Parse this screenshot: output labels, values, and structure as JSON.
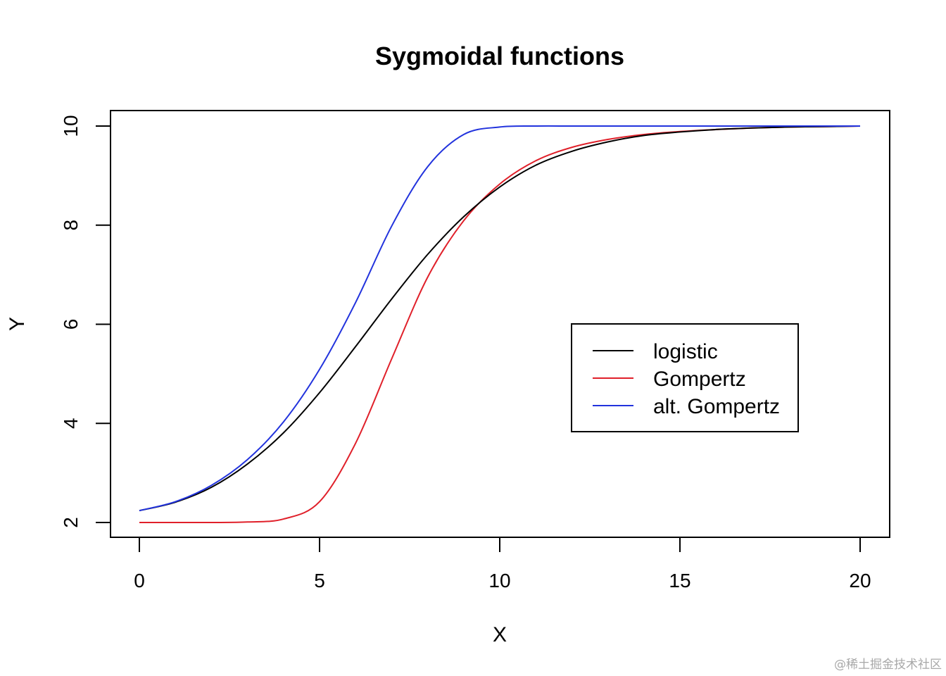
{
  "chart_data": {
    "type": "line",
    "title": "Sygmoidal functions",
    "xlabel": "X",
    "ylabel": "Y",
    "xlim": [
      0,
      20
    ],
    "ylim": [
      2,
      10
    ],
    "xticks": [
      "0",
      "5",
      "10",
      "15",
      "20"
    ],
    "yticks": [
      "2",
      "4",
      "6",
      "8",
      "10"
    ],
    "grid": false,
    "legend_position": "right",
    "x": [
      0,
      1,
      2,
      3,
      4,
      5,
      6,
      7,
      8,
      9,
      10,
      11,
      12,
      13,
      14,
      15,
      16,
      17,
      18,
      19,
      20
    ],
    "series": [
      {
        "name": "logistic",
        "color": "#000000",
        "values": [
          2.24,
          2.41,
          2.71,
          3.18,
          3.81,
          4.62,
          5.55,
          6.51,
          7.41,
          8.17,
          8.77,
          9.21,
          9.49,
          9.68,
          9.81,
          9.88,
          9.93,
          9.96,
          9.98,
          9.99,
          10.0
        ]
      },
      {
        "name": "Gompertz",
        "color": "#e0202a",
        "values": [
          2.0,
          2.0,
          2.0,
          2.01,
          2.07,
          2.42,
          3.6,
          5.3,
          6.95,
          8.09,
          8.83,
          9.3,
          9.57,
          9.73,
          9.83,
          9.89,
          9.93,
          9.96,
          9.98,
          9.99,
          10.0
        ]
      },
      {
        "name": "alt. Gompertz",
        "color": "#2233dd",
        "values": [
          2.24,
          2.42,
          2.75,
          3.27,
          4.03,
          5.09,
          6.44,
          7.98,
          9.18,
          9.83,
          9.98,
          10.0,
          10.0,
          10.0,
          10.0,
          10.0,
          10.0,
          10.0,
          10.0,
          10.0,
          10.0
        ]
      }
    ]
  },
  "watermark": "@稀土掘金技术社区"
}
